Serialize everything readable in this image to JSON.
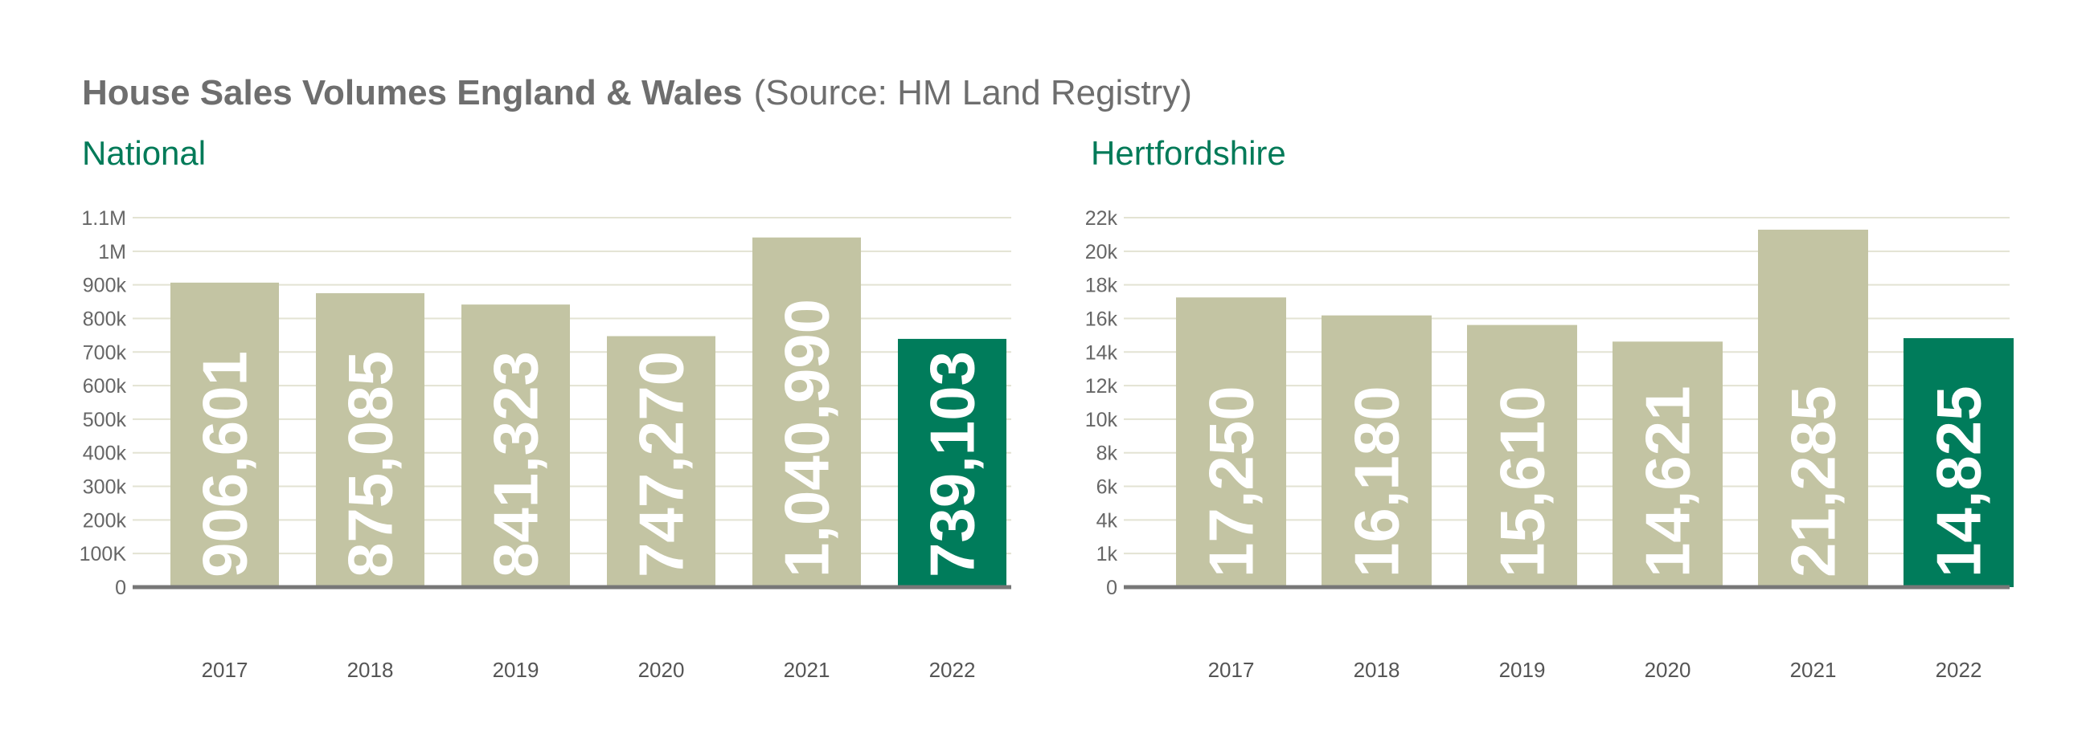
{
  "title": "House Sales Volumes England & Wales",
  "source": "(Source: HM Land Registry)",
  "colors": {
    "bar": "#c3c4a3",
    "highlight": "#007c5b",
    "grid": "#e3e3d3",
    "axis": "#777777",
    "subtitle": "#007a58"
  },
  "chart_data": [
    {
      "type": "bar",
      "title": "National",
      "categories": [
        "2017",
        "2018",
        "2019",
        "2020",
        "2021",
        "2022"
      ],
      "values": [
        906601,
        875085,
        841323,
        747270,
        1040990,
        739103
      ],
      "value_labels": [
        "906,601",
        "875,085",
        "841,323",
        "747,270",
        "1,040,990",
        "739,103"
      ],
      "highlight_index": 5,
      "yticks": [
        0,
        100000,
        200000,
        300000,
        400000,
        500000,
        600000,
        700000,
        800000,
        900000,
        1000000,
        1100000
      ],
      "ytick_labels": [
        "0",
        "100K",
        "200k",
        "300k",
        "400k",
        "500k",
        "600k",
        "700k",
        "800k",
        "900k",
        "1M",
        "1.1M"
      ],
      "ylim": [
        0,
        1100000
      ],
      "grid": true,
      "xlabel": "",
      "ylabel": ""
    },
    {
      "type": "bar",
      "title": "Hertfordshire",
      "categories": [
        "2017",
        "2018",
        "2019",
        "2020",
        "2021",
        "2022"
      ],
      "values": [
        17250,
        16180,
        15610,
        14621,
        21285,
        14825
      ],
      "value_labels": [
        "17,250",
        "16,180",
        "15,610",
        "14,621",
        "21,285",
        "14,825"
      ],
      "highlight_index": 5,
      "yticks": [
        0,
        1000,
        4000,
        6000,
        8000,
        10000,
        12000,
        14000,
        16000,
        18000,
        20000,
        22000
      ],
      "ytick_labels": [
        "0",
        "1k",
        "4k",
        "6k",
        "8k",
        "10k",
        "12k",
        "14k",
        "16k",
        "18k",
        "20k",
        "22k"
      ],
      "ylim": [
        0,
        22000
      ],
      "grid": true,
      "xlabel": "",
      "ylabel": ""
    }
  ]
}
